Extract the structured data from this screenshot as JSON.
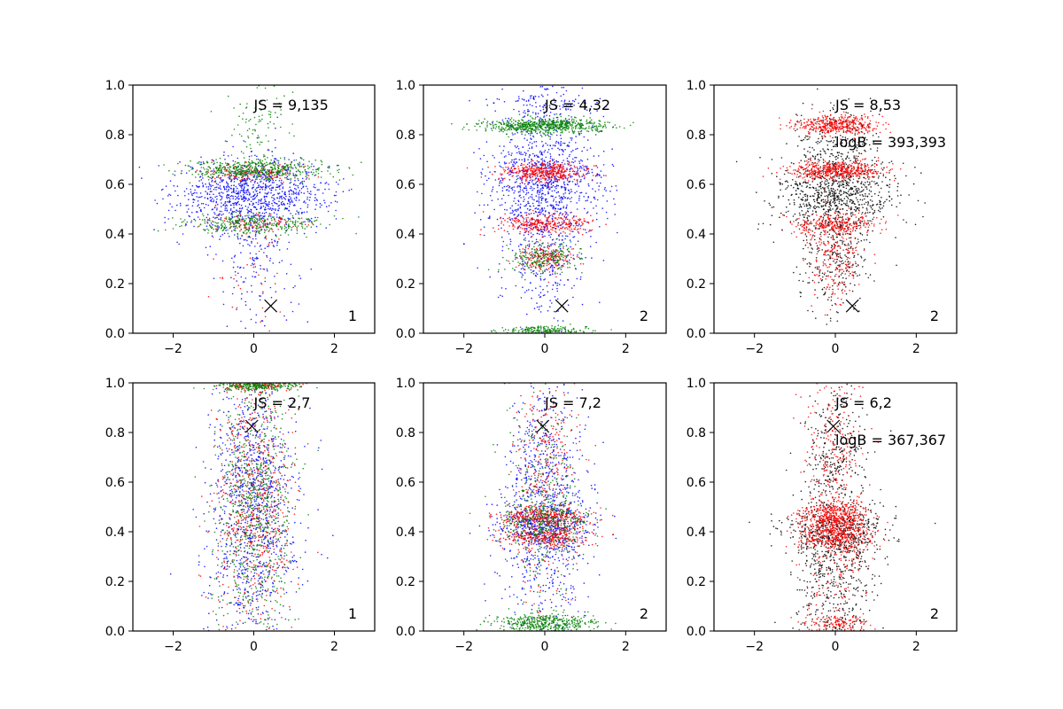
{
  "figure": {
    "background": "#ffffff"
  },
  "chart_data": [
    {
      "type": "scatter",
      "panel_label": "1",
      "annotations": [
        "JS = 9,135"
      ],
      "xlim": [
        -3,
        3
      ],
      "ylim": [
        0,
        1
      ],
      "xticks": [
        "−2",
        "0",
        "2"
      ],
      "yticks": [
        "0.0",
        "0.2",
        "0.4",
        "0.6",
        "0.8",
        "1.0"
      ],
      "marker": {
        "x": 0.42,
        "y": 0.11,
        "symbol": "x"
      },
      "series": [
        {
          "color": "#0000ff",
          "point_count": 1200,
          "clusters": [
            {
              "y": 0.56,
              "sy": 0.07,
              "sx": 0.95,
              "weight": 0.8
            },
            {
              "y": 0.35,
              "sy": 0.2,
              "sx": 0.55,
              "weight": 0.2
            }
          ]
        },
        {
          "color": "#ff0000",
          "point_count": 300,
          "clusters": [
            {
              "y": 0.65,
              "sy": 0.02,
              "sx": 0.7,
              "weight": 0.5
            },
            {
              "y": 0.44,
              "sy": 0.02,
              "sx": 0.7,
              "weight": 0.35
            },
            {
              "y": 0.25,
              "sy": 0.15,
              "sx": 0.5,
              "weight": 0.15
            }
          ]
        },
        {
          "color": "#008000",
          "point_count": 900,
          "clusters": [
            {
              "y": 0.66,
              "sy": 0.02,
              "sx": 0.85,
              "weight": 0.55
            },
            {
              "y": 0.44,
              "sy": 0.02,
              "sx": 0.85,
              "weight": 0.35
            },
            {
              "y": 0.85,
              "sy": 0.08,
              "sx": 0.4,
              "weight": 0.1
            }
          ]
        }
      ]
    },
    {
      "type": "scatter",
      "panel_label": "2",
      "annotations": [
        "JS = 4,32"
      ],
      "xlim": [
        -3,
        3
      ],
      "ylim": [
        0,
        1
      ],
      "xticks": [
        "−2",
        "0",
        "2"
      ],
      "yticks": [
        "0.0",
        "0.2",
        "0.4",
        "0.6",
        "0.8",
        "1.0"
      ],
      "marker": {
        "x": 0.42,
        "y": 0.11,
        "symbol": "x"
      },
      "series": [
        {
          "color": "#0000ff",
          "point_count": 1400,
          "clusters": [
            {
              "y": 0.6,
              "sy": 0.12,
              "sx": 0.7,
              "weight": 0.7
            },
            {
              "y": 0.3,
              "sy": 0.15,
              "sx": 0.5,
              "weight": 0.2
            },
            {
              "y": 0.92,
              "sy": 0.04,
              "sx": 0.6,
              "weight": 0.1
            }
          ]
        },
        {
          "color": "#ff0000",
          "point_count": 900,
          "clusters": [
            {
              "y": 0.65,
              "sy": 0.02,
              "sx": 0.55,
              "weight": 0.45
            },
            {
              "y": 0.44,
              "sy": 0.02,
              "sx": 0.55,
              "weight": 0.35
            },
            {
              "y": 0.3,
              "sy": 0.03,
              "sx": 0.4,
              "weight": 0.2
            }
          ]
        },
        {
          "color": "#008000",
          "point_count": 1100,
          "clusters": [
            {
              "y": 0.835,
              "sy": 0.015,
              "sx": 0.75,
              "weight": 0.6
            },
            {
              "y": 0.3,
              "sy": 0.03,
              "sx": 0.45,
              "weight": 0.2
            },
            {
              "y": 0.01,
              "sy": 0.01,
              "sx": 0.6,
              "weight": 0.2
            }
          ]
        }
      ]
    },
    {
      "type": "scatter",
      "panel_label": "2",
      "annotations": [
        "JS = 8,53",
        "logB = 393,393"
      ],
      "xlim": [
        -3,
        3
      ],
      "ylim": [
        0,
        1
      ],
      "xticks": [
        "−2",
        "0",
        "2"
      ],
      "yticks": [
        "0.0",
        "0.2",
        "0.4",
        "0.6",
        "0.8",
        "1.0"
      ],
      "marker": {
        "x": 0.42,
        "y": 0.11,
        "symbol": "x"
      },
      "series": [
        {
          "color": "#000000",
          "point_count": 1300,
          "clusters": [
            {
              "y": 0.55,
              "sy": 0.08,
              "sx": 0.75,
              "weight": 0.6
            },
            {
              "y": 0.75,
              "sy": 0.08,
              "sx": 0.6,
              "weight": 0.2
            },
            {
              "y": 0.3,
              "sy": 0.12,
              "sx": 0.45,
              "weight": 0.2
            }
          ]
        },
        {
          "color": "#ff0000",
          "point_count": 1400,
          "clusters": [
            {
              "y": 0.84,
              "sy": 0.02,
              "sx": 0.5,
              "weight": 0.3
            },
            {
              "y": 0.655,
              "sy": 0.02,
              "sx": 0.55,
              "weight": 0.35
            },
            {
              "y": 0.44,
              "sy": 0.02,
              "sx": 0.5,
              "weight": 0.2
            },
            {
              "y": 0.3,
              "sy": 0.08,
              "sx": 0.35,
              "weight": 0.15
            }
          ]
        }
      ]
    },
    {
      "type": "scatter",
      "panel_label": "1",
      "annotations": [
        "JS = 2,7"
      ],
      "xlim": [
        -3,
        3
      ],
      "ylim": [
        0,
        1
      ],
      "xticks": [
        "−2",
        "0",
        "2"
      ],
      "yticks": [
        "0.0",
        "0.2",
        "0.4",
        "0.6",
        "0.8",
        "1.0"
      ],
      "marker": {
        "x": -0.05,
        "y": 0.825,
        "symbol": "x"
      },
      "series": [
        {
          "color": "#0000ff",
          "point_count": 1100,
          "clusters": [
            {
              "y": 0.5,
              "sy": 0.28,
              "sx": 0.55,
              "weight": 1.0
            }
          ]
        },
        {
          "color": "#ff0000",
          "point_count": 800,
          "clusters": [
            {
              "y": 0.5,
              "sy": 0.28,
              "sx": 0.5,
              "weight": 0.85
            },
            {
              "y": 0.99,
              "sy": 0.01,
              "sx": 0.55,
              "weight": 0.15
            }
          ]
        },
        {
          "color": "#008000",
          "point_count": 1000,
          "clusters": [
            {
              "y": 0.5,
              "sy": 0.28,
              "sx": 0.5,
              "weight": 0.75
            },
            {
              "y": 0.99,
              "sy": 0.01,
              "sx": 0.55,
              "weight": 0.25
            }
          ]
        }
      ]
    },
    {
      "type": "scatter",
      "panel_label": "2",
      "annotations": [
        "JS = 7,2"
      ],
      "xlim": [
        -3,
        3
      ],
      "ylim": [
        0,
        1
      ],
      "xticks": [
        "−2",
        "0",
        "2"
      ],
      "yticks": [
        "0.0",
        "0.2",
        "0.4",
        "0.6",
        "0.8",
        "1.0"
      ],
      "marker": {
        "x": -0.05,
        "y": 0.825,
        "symbol": "x"
      },
      "series": [
        {
          "color": "#0000ff",
          "point_count": 1200,
          "clusters": [
            {
              "y": 0.5,
              "sy": 0.25,
              "sx": 0.55,
              "weight": 0.7
            },
            {
              "y": 0.42,
              "sy": 0.04,
              "sx": 0.6,
              "weight": 0.3
            }
          ]
        },
        {
          "color": "#ff0000",
          "point_count": 1000,
          "clusters": [
            {
              "y": 0.46,
              "sy": 0.02,
              "sx": 0.55,
              "weight": 0.35
            },
            {
              "y": 0.38,
              "sy": 0.02,
              "sx": 0.55,
              "weight": 0.3
            },
            {
              "y": 0.6,
              "sy": 0.25,
              "sx": 0.4,
              "weight": 0.35
            }
          ]
        },
        {
          "color": "#008000",
          "point_count": 1000,
          "clusters": [
            {
              "y": 0.03,
              "sy": 0.02,
              "sx": 0.6,
              "weight": 0.45
            },
            {
              "y": 0.45,
              "sy": 0.05,
              "sx": 0.5,
              "weight": 0.3
            },
            {
              "y": 0.5,
              "sy": 0.25,
              "sx": 0.45,
              "weight": 0.25
            }
          ]
        }
      ]
    },
    {
      "type": "scatter",
      "panel_label": "2",
      "annotations": [
        "JS = 6,2",
        "logB = 367,367"
      ],
      "xlim": [
        -3,
        3
      ],
      "ylim": [
        0,
        1
      ],
      "xticks": [
        "−2",
        "0",
        "2"
      ],
      "yticks": [
        "0.0",
        "0.2",
        "0.4",
        "0.6",
        "0.8",
        "1.0"
      ],
      "marker": {
        "x": -0.05,
        "y": 0.825,
        "symbol": "x"
      },
      "series": [
        {
          "color": "#000000",
          "point_count": 1200,
          "clusters": [
            {
              "y": 0.4,
              "sy": 0.06,
              "sx": 0.65,
              "weight": 0.4
            },
            {
              "y": 0.2,
              "sy": 0.15,
              "sx": 0.5,
              "weight": 0.35
            },
            {
              "y": 0.7,
              "sy": 0.15,
              "sx": 0.4,
              "weight": 0.25
            }
          ]
        },
        {
          "color": "#ff0000",
          "point_count": 1400,
          "clusters": [
            {
              "y": 0.46,
              "sy": 0.03,
              "sx": 0.45,
              "weight": 0.3
            },
            {
              "y": 0.38,
              "sy": 0.03,
              "sx": 0.45,
              "weight": 0.25
            },
            {
              "y": 0.5,
              "sy": 0.3,
              "sx": 0.35,
              "weight": 0.35
            },
            {
              "y": 0.03,
              "sy": 0.02,
              "sx": 0.45,
              "weight": 0.1
            }
          ]
        }
      ]
    }
  ]
}
